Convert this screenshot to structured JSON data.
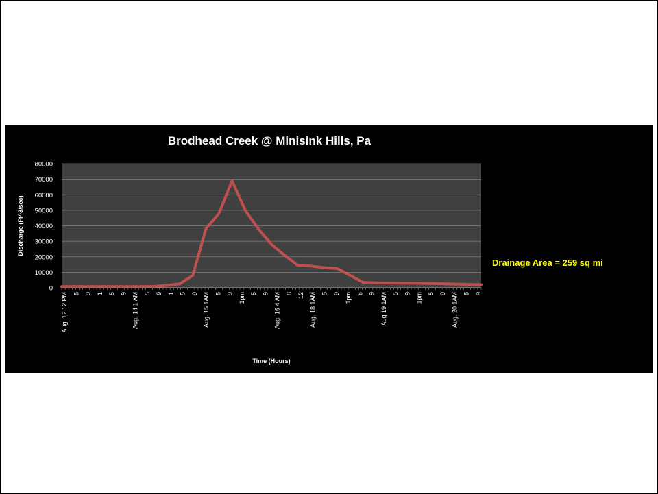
{
  "colors": {
    "panel": "#000000",
    "plot_area": "#404040",
    "line": "#c0504d",
    "grid": "#808080",
    "text": "#ffffff",
    "annotation": "#ffff00"
  },
  "chart_data": {
    "type": "line",
    "title": "Brodhead Creek @ Minisink Hills, Pa",
    "xlabel": "Time (Hours)",
    "ylabel": "Discharge (Ft^3/sec)",
    "ylim": [
      0,
      80000
    ],
    "yticks": [
      "0",
      "10000",
      "20000",
      "30000",
      "40000",
      "50000",
      "60000",
      "70000",
      "80000"
    ],
    "grid": true,
    "legend": "none",
    "annotation": "Drainage Area = 259 sq mi",
    "x_tick_labels": [
      "Aug. 12 12 PM",
      "5",
      "9",
      "1",
      "5",
      "9",
      "Aug. 14 1 AM",
      "5",
      "9",
      "1",
      "5",
      "9",
      "Aug. 15 1AM",
      "5",
      "9",
      "1pm",
      "5",
      "9",
      "Aug. 16 4 AM",
      "8",
      "12",
      "Aug. 18 1AM",
      "5",
      "9",
      "1pm",
      "5",
      "9",
      "Aug 19 1AM",
      "5",
      "9",
      "1pm",
      "5",
      "9",
      "Aug. 20 1AM",
      "5",
      "9"
    ],
    "series": [
      {
        "values": [
          800,
          800,
          800,
          800,
          800,
          800,
          800,
          900,
          1500,
          2500,
          8000,
          38000,
          48000,
          69000,
          50000,
          38000,
          28000,
          21000,
          14500,
          14000,
          13000,
          12500,
          8000,
          3500,
          3200,
          3100,
          3000,
          2900,
          2800,
          2600,
          2400,
          2200,
          2000
        ]
      }
    ]
  }
}
